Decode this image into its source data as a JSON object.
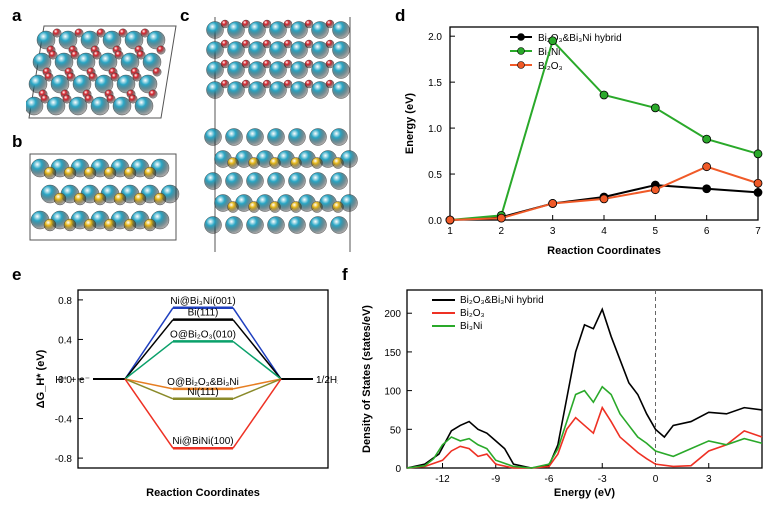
{
  "panels": {
    "a": {
      "label": "a"
    },
    "b": {
      "label": "b"
    },
    "c": {
      "label": "c"
    },
    "d": {
      "label": "d"
    },
    "e": {
      "label": "e"
    },
    "f": {
      "label": "f"
    }
  },
  "atoms": {
    "bi_color": "#2aa6c5",
    "o_color": "#d8252e",
    "ni_color": "#e6b81a",
    "edge_color": "#555555"
  },
  "panel_d": {
    "type": "line-scatter",
    "xlabel": "Reaction Coordinates",
    "ylabel": "Energy (eV)",
    "xlim": [
      1,
      7
    ],
    "ylim": [
      0,
      2.1
    ],
    "xticks": [
      1,
      2,
      3,
      4,
      5,
      6,
      7
    ],
    "yticks": [
      0.0,
      0.5,
      1.0,
      1.5,
      2.0
    ],
    "series": [
      {
        "name": "Bi₂O₃&Bi₃Ni hybrid",
        "color": "#000000",
        "marker": "circle",
        "x": [
          1,
          2,
          3,
          4,
          5,
          6,
          7
        ],
        "y": [
          0.0,
          0.03,
          0.18,
          0.25,
          0.38,
          0.34,
          0.3
        ]
      },
      {
        "name": "Bi₃Ni",
        "color": "#2aa92a",
        "marker": "circle",
        "x": [
          1,
          2,
          3,
          4,
          5,
          6,
          7
        ],
        "y": [
          0.0,
          0.05,
          1.95,
          1.36,
          1.22,
          0.88,
          0.72
        ]
      },
      {
        "name": "Bi₂O₃",
        "color": "#f05a28",
        "marker": "circle",
        "x": [
          1,
          2,
          3,
          4,
          5,
          6,
          7
        ],
        "y": [
          0.0,
          0.02,
          0.18,
          0.23,
          0.33,
          0.58,
          0.4
        ]
      }
    ]
  },
  "panel_e": {
    "type": "free-energy-levels",
    "xlabel": "Reaction Coordinates",
    "ylabel": "ΔG_H* (eV)",
    "ylim": [
      -0.9,
      0.9
    ],
    "yticks": [
      -0.8,
      -0.4,
      0.0,
      0.4,
      0.8
    ],
    "left_label": "H⁺ + e⁻",
    "right_label": "1/2H₂(g)",
    "levels": [
      {
        "name": "Ni@Bi₃Ni(001)",
        "dg": 0.72,
        "color": "#1f3fbf"
      },
      {
        "name": "Bi(111)",
        "dg": 0.6,
        "color": "#000000"
      },
      {
        "name": "O@Bi₂O₃(010)",
        "dg": 0.38,
        "color": "#0aa06a"
      },
      {
        "name": "O@Bi₂O₃&Bi₃Ni",
        "dg": -0.1,
        "color": "#e67e22"
      },
      {
        "name": "Ni(111)",
        "dg": -0.2,
        "color": "#8a8a2a"
      },
      {
        "name": "Ni@BiNi(100)",
        "dg": -0.7,
        "color": "#ee3124"
      }
    ]
  },
  "panel_f": {
    "type": "dos",
    "xlabel": "Energy (eV)",
    "ylabel": "Density of States (states/eV)",
    "xlim": [
      -14,
      6
    ],
    "ylim": [
      0,
      230
    ],
    "xticks": [
      -12,
      -9,
      -6,
      -3,
      0,
      3
    ],
    "yticks": [
      0,
      50,
      100,
      150,
      200
    ],
    "fermi": 0,
    "legend": [
      {
        "name": "Bi₂O₃&Bi₃Ni hybrid",
        "color": "#000000"
      },
      {
        "name": "Bi₂O₃",
        "color": "#ee3124"
      },
      {
        "name": "Bi₃Ni",
        "color": "#2aa92a"
      }
    ],
    "hybrid": {
      "x": [
        -14,
        -13,
        -12.2,
        -11.5,
        -11,
        -10.5,
        -10,
        -9.5,
        -9,
        -8.5,
        -8,
        -7,
        -6,
        -5.5,
        -5,
        -4.5,
        -4,
        -3.5,
        -3,
        -2.5,
        -2,
        -1.5,
        -1,
        -0.5,
        0,
        0.5,
        1,
        2,
        3,
        4,
        5,
        6
      ],
      "y": [
        0,
        5,
        18,
        48,
        55,
        60,
        50,
        45,
        35,
        25,
        5,
        0,
        3,
        30,
        90,
        150,
        185,
        180,
        205,
        170,
        140,
        110,
        95,
        70,
        50,
        40,
        55,
        60,
        72,
        70,
        78,
        75
      ]
    },
    "bi2o3": {
      "x": [
        -14,
        -13,
        -12,
        -11.5,
        -11,
        -10.5,
        -10,
        -9.5,
        -9,
        -8,
        -7,
        -6,
        -5.5,
        -5,
        -4.5,
        -4,
        -3.5,
        -3,
        -2.5,
        -2,
        -1.5,
        -1,
        -0.5,
        0,
        1,
        2,
        3,
        4,
        5,
        6
      ],
      "y": [
        0,
        2,
        10,
        22,
        28,
        25,
        15,
        18,
        5,
        0,
        0,
        2,
        18,
        50,
        65,
        55,
        45,
        78,
        60,
        40,
        30,
        20,
        12,
        5,
        2,
        3,
        22,
        30,
        48,
        40
      ]
    },
    "bi3ni": {
      "x": [
        -14,
        -13,
        -12.5,
        -12,
        -11.5,
        -11,
        -10.5,
        -10,
        -9.5,
        -9,
        -8,
        -7,
        -6,
        -5.5,
        -5,
        -4.5,
        -4,
        -3.5,
        -3,
        -2.5,
        -2,
        -1.5,
        -1,
        -0.5,
        0,
        1,
        2,
        3,
        4,
        5,
        6
      ],
      "y": [
        0,
        3,
        12,
        30,
        40,
        35,
        38,
        30,
        25,
        10,
        2,
        0,
        5,
        25,
        60,
        95,
        100,
        85,
        105,
        95,
        70,
        55,
        40,
        32,
        22,
        15,
        25,
        35,
        30,
        38,
        32
      ]
    }
  }
}
